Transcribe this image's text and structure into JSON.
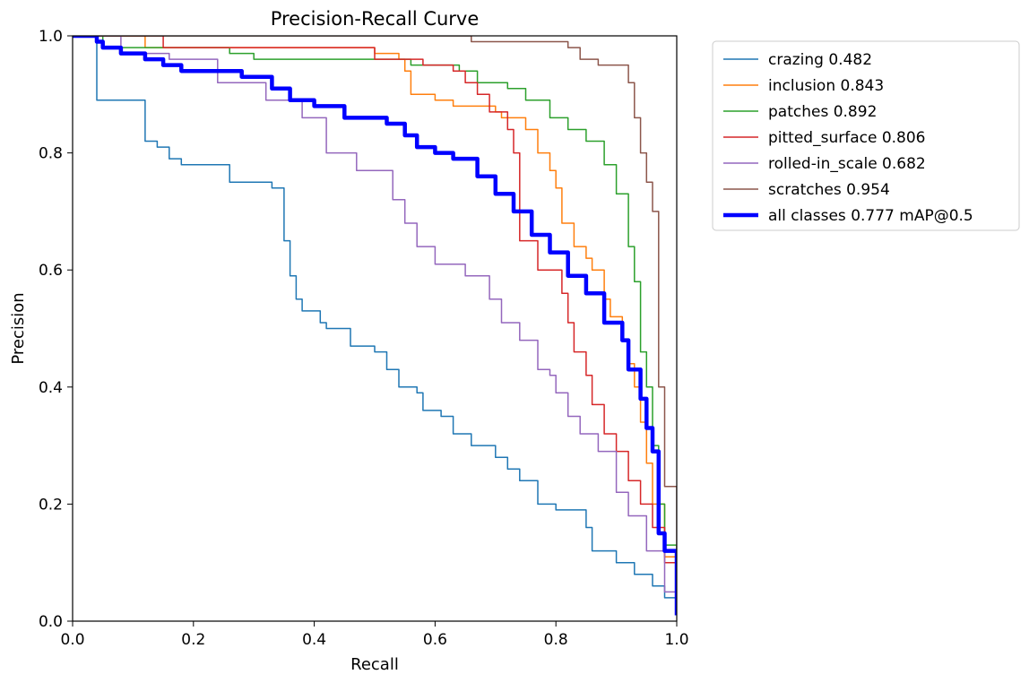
{
  "chart_data": {
    "type": "line",
    "title": "Precision-Recall Curve",
    "xlabel": "Recall",
    "ylabel": "Precision",
    "xlim": [
      0,
      1
    ],
    "ylim": [
      0,
      1
    ],
    "x_ticks": [
      "0.0",
      "0.2",
      "0.4",
      "0.6",
      "0.8",
      "1.0"
    ],
    "y_ticks": [
      "0.0",
      "0.2",
      "0.4",
      "0.6",
      "0.8",
      "1.0"
    ],
    "grid": false,
    "legend_placement": "outside-upper-right",
    "series": [
      {
        "name": "crazing 0.482",
        "color": "#1f77b4",
        "width": "thin",
        "points": [
          [
            0,
            1.0
          ],
          [
            0.03,
            1.0
          ],
          [
            0.04,
            0.89
          ],
          [
            0.12,
            0.89
          ],
          [
            0.12,
            0.82
          ],
          [
            0.14,
            0.82
          ],
          [
            0.14,
            0.81
          ],
          [
            0.16,
            0.81
          ],
          [
            0.16,
            0.79
          ],
          [
            0.18,
            0.79
          ],
          [
            0.18,
            0.78
          ],
          [
            0.26,
            0.78
          ],
          [
            0.26,
            0.75
          ],
          [
            0.3,
            0.75
          ],
          [
            0.33,
            0.74
          ],
          [
            0.35,
            0.73
          ],
          [
            0.35,
            0.65
          ],
          [
            0.36,
            0.64
          ],
          [
            0.36,
            0.59
          ],
          [
            0.37,
            0.55
          ],
          [
            0.38,
            0.53
          ],
          [
            0.41,
            0.51
          ],
          [
            0.42,
            0.5
          ],
          [
            0.46,
            0.47
          ],
          [
            0.5,
            0.46
          ],
          [
            0.52,
            0.43
          ],
          [
            0.54,
            0.4
          ],
          [
            0.57,
            0.39
          ],
          [
            0.58,
            0.36
          ],
          [
            0.61,
            0.35
          ],
          [
            0.63,
            0.32
          ],
          [
            0.66,
            0.3
          ],
          [
            0.7,
            0.28
          ],
          [
            0.72,
            0.26
          ],
          [
            0.74,
            0.24
          ],
          [
            0.77,
            0.22
          ],
          [
            0.77,
            0.2
          ],
          [
            0.8,
            0.19
          ],
          [
            0.85,
            0.16
          ],
          [
            0.86,
            0.12
          ],
          [
            0.9,
            0.1
          ],
          [
            0.93,
            0.08
          ],
          [
            0.96,
            0.06
          ],
          [
            0.98,
            0.04
          ],
          [
            1.0,
            0.01
          ]
        ]
      },
      {
        "name": "inclusion 0.843",
        "color": "#ff7f0e",
        "width": "thin",
        "points": [
          [
            0,
            1.0
          ],
          [
            0.11,
            1.0
          ],
          [
            0.12,
            0.98
          ],
          [
            0.3,
            0.98
          ],
          [
            0.5,
            0.97
          ],
          [
            0.54,
            0.96
          ],
          [
            0.55,
            0.94
          ],
          [
            0.56,
            0.9
          ],
          [
            0.6,
            0.89
          ],
          [
            0.63,
            0.88
          ],
          [
            0.7,
            0.87
          ],
          [
            0.71,
            0.86
          ],
          [
            0.75,
            0.86
          ],
          [
            0.75,
            0.84
          ],
          [
            0.77,
            0.8
          ],
          [
            0.79,
            0.77
          ],
          [
            0.8,
            0.74
          ],
          [
            0.81,
            0.7
          ],
          [
            0.81,
            0.68
          ],
          [
            0.83,
            0.64
          ],
          [
            0.85,
            0.62
          ],
          [
            0.86,
            0.6
          ],
          [
            0.88,
            0.55
          ],
          [
            0.89,
            0.52
          ],
          [
            0.91,
            0.48
          ],
          [
            0.92,
            0.44
          ],
          [
            0.93,
            0.4
          ],
          [
            0.94,
            0.34
          ],
          [
            0.95,
            0.27
          ],
          [
            0.96,
            0.2
          ],
          [
            0.98,
            0.11
          ],
          [
            1.0,
            0.01
          ]
        ]
      },
      {
        "name": "patches 0.892",
        "color": "#2ca02c",
        "width": "thin",
        "points": [
          [
            0,
            1.0
          ],
          [
            0.04,
            1.0
          ],
          [
            0.05,
            0.98
          ],
          [
            0.2,
            0.98
          ],
          [
            0.26,
            0.97
          ],
          [
            0.3,
            0.96
          ],
          [
            0.56,
            0.95
          ],
          [
            0.64,
            0.94
          ],
          [
            0.67,
            0.92
          ],
          [
            0.72,
            0.91
          ],
          [
            0.75,
            0.89
          ],
          [
            0.79,
            0.86
          ],
          [
            0.82,
            0.84
          ],
          [
            0.85,
            0.82
          ],
          [
            0.88,
            0.78
          ],
          [
            0.9,
            0.73
          ],
          [
            0.92,
            0.64
          ],
          [
            0.93,
            0.58
          ],
          [
            0.94,
            0.46
          ],
          [
            0.95,
            0.4
          ],
          [
            0.96,
            0.3
          ],
          [
            0.97,
            0.2
          ],
          [
            0.98,
            0.13
          ],
          [
            1.0,
            0.01
          ]
        ]
      },
      {
        "name": "pitted_surface 0.806",
        "color": "#d62728",
        "width": "thin",
        "points": [
          [
            0,
            1.0
          ],
          [
            0.14,
            1.0
          ],
          [
            0.15,
            0.98
          ],
          [
            0.4,
            0.98
          ],
          [
            0.5,
            0.96
          ],
          [
            0.58,
            0.95
          ],
          [
            0.63,
            0.94
          ],
          [
            0.65,
            0.92
          ],
          [
            0.67,
            0.9
          ],
          [
            0.69,
            0.87
          ],
          [
            0.72,
            0.84
          ],
          [
            0.73,
            0.8
          ],
          [
            0.74,
            0.74
          ],
          [
            0.74,
            0.65
          ],
          [
            0.77,
            0.6
          ],
          [
            0.81,
            0.56
          ],
          [
            0.82,
            0.51
          ],
          [
            0.83,
            0.46
          ],
          [
            0.85,
            0.42
          ],
          [
            0.86,
            0.37
          ],
          [
            0.88,
            0.32
          ],
          [
            0.9,
            0.29
          ],
          [
            0.92,
            0.24
          ],
          [
            0.94,
            0.2
          ],
          [
            0.96,
            0.16
          ],
          [
            0.98,
            0.1
          ],
          [
            1.0,
            0.01
          ]
        ]
      },
      {
        "name": "rolled-in_scale 0.682",
        "color": "#9467bd",
        "width": "thin",
        "points": [
          [
            0,
            1.0
          ],
          [
            0.06,
            1.0
          ],
          [
            0.08,
            0.97
          ],
          [
            0.16,
            0.96
          ],
          [
            0.24,
            0.92
          ],
          [
            0.32,
            0.89
          ],
          [
            0.38,
            0.86
          ],
          [
            0.42,
            0.8
          ],
          [
            0.47,
            0.77
          ],
          [
            0.53,
            0.72
          ],
          [
            0.55,
            0.68
          ],
          [
            0.57,
            0.64
          ],
          [
            0.6,
            0.61
          ],
          [
            0.65,
            0.59
          ],
          [
            0.69,
            0.55
          ],
          [
            0.71,
            0.51
          ],
          [
            0.74,
            0.48
          ],
          [
            0.77,
            0.43
          ],
          [
            0.79,
            0.42
          ],
          [
            0.8,
            0.39
          ],
          [
            0.82,
            0.35
          ],
          [
            0.84,
            0.32
          ],
          [
            0.87,
            0.29
          ],
          [
            0.9,
            0.22
          ],
          [
            0.92,
            0.18
          ],
          [
            0.95,
            0.12
          ],
          [
            0.98,
            0.05
          ],
          [
            1.0,
            0.01
          ]
        ]
      },
      {
        "name": "scratches 0.954",
        "color": "#8c564b",
        "width": "thin",
        "points": [
          [
            0,
            1.0
          ],
          [
            0.66,
            1.0
          ],
          [
            0.66,
            0.99
          ],
          [
            0.81,
            0.99
          ],
          [
            0.82,
            0.98
          ],
          [
            0.84,
            0.96
          ],
          [
            0.87,
            0.95
          ],
          [
            0.9,
            0.95
          ],
          [
            0.92,
            0.92
          ],
          [
            0.93,
            0.86
          ],
          [
            0.94,
            0.8
          ],
          [
            0.95,
            0.75
          ],
          [
            0.96,
            0.7
          ],
          [
            0.97,
            0.7
          ],
          [
            0.97,
            0.4
          ],
          [
            0.98,
            0.23
          ],
          [
            1.0,
            0.01
          ]
        ]
      },
      {
        "name": "all classes 0.777 mAP@0.5",
        "color": "#0000ff",
        "width": "thick",
        "points": [
          [
            0,
            1.0
          ],
          [
            0.04,
            0.99
          ],
          [
            0.05,
            0.98
          ],
          [
            0.08,
            0.97
          ],
          [
            0.12,
            0.96
          ],
          [
            0.15,
            0.95
          ],
          [
            0.18,
            0.94
          ],
          [
            0.22,
            0.94
          ],
          [
            0.28,
            0.93
          ],
          [
            0.33,
            0.91
          ],
          [
            0.36,
            0.89
          ],
          [
            0.4,
            0.88
          ],
          [
            0.45,
            0.86
          ],
          [
            0.52,
            0.85
          ],
          [
            0.55,
            0.83
          ],
          [
            0.57,
            0.81
          ],
          [
            0.6,
            0.8
          ],
          [
            0.63,
            0.79
          ],
          [
            0.67,
            0.76
          ],
          [
            0.7,
            0.73
          ],
          [
            0.73,
            0.7
          ],
          [
            0.76,
            0.66
          ],
          [
            0.79,
            0.63
          ],
          [
            0.82,
            0.59
          ],
          [
            0.85,
            0.56
          ],
          [
            0.88,
            0.51
          ],
          [
            0.91,
            0.48
          ],
          [
            0.92,
            0.43
          ],
          [
            0.94,
            0.38
          ],
          [
            0.95,
            0.33
          ],
          [
            0.96,
            0.29
          ],
          [
            0.97,
            0.15
          ],
          [
            0.98,
            0.12
          ],
          [
            1.0,
            0.01
          ]
        ]
      }
    ]
  }
}
